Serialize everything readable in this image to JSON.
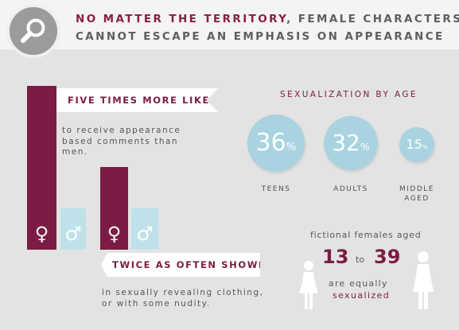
{
  "header": {
    "title_accent": "NO MATTER THE TERRITORY",
    "title_rest": ", FEMALE CHARACTERS",
    "title_line2": "CANNOT ESCAPE AN EMPHASIS ON APPEARANCE",
    "icon": "magnifier-icon"
  },
  "colors": {
    "accent": "#7a1c43",
    "light_blue": "#a9d3e0",
    "male_bar": "#bfe1ea",
    "background": "#e3e3e3"
  },
  "stats": [
    {
      "banner": "FIVE TIMES MORE LIKELY",
      "desc_lines": [
        "to receive appearance",
        "based comments than",
        "men."
      ]
    },
    {
      "banner": "TWICE AS OFTEN SHOWN",
      "desc_lines": [
        "in sexually revealing clothing,",
        "or with some nudity."
      ]
    }
  ],
  "symbols": {
    "female": "♀",
    "male": "♂"
  },
  "sexualization": {
    "title": "SEXUALIZATION BY AGE",
    "groups": [
      {
        "value": "36",
        "unit": "%",
        "label_lines": [
          "TEENS"
        ]
      },
      {
        "value": "32",
        "unit": "%",
        "label_lines": [
          "ADULTS"
        ]
      },
      {
        "value": "15",
        "unit": "%",
        "label_lines": [
          "MIDDLE",
          "AGED"
        ]
      }
    ]
  },
  "fictional": {
    "line1": "fictional females aged",
    "age_from": "13",
    "to": "to",
    "age_to": "39",
    "line3": "are equally",
    "line4": "sexualized",
    "icons": [
      "young-woman-icon",
      "woman-icon"
    ]
  }
}
